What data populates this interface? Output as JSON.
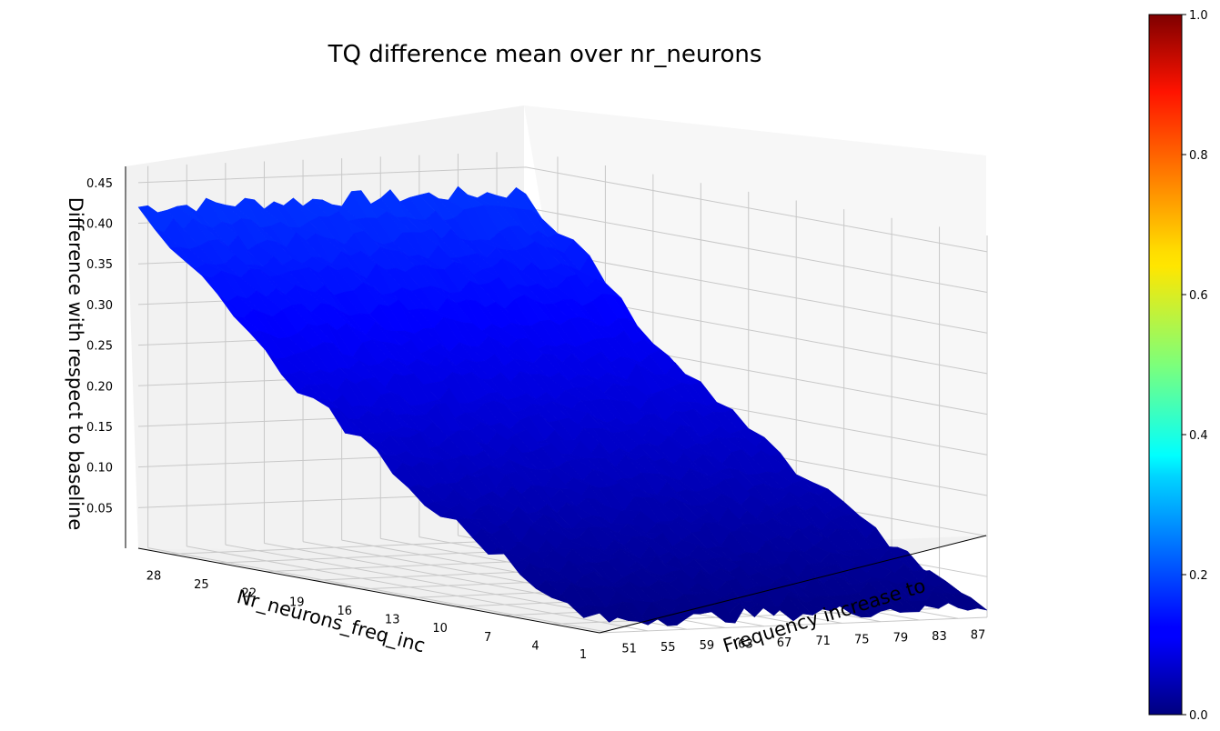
{
  "chart_data": {
    "type": "surface3d",
    "title": "TQ difference mean over nr_neurons",
    "xlabel": "Nr_neurons_freq_inc",
    "ylabel": "Frequency increase to",
    "zlabel": "Difference with respect to baseline",
    "x_ticks": [
      "28",
      "25",
      "22",
      "19",
      "16",
      "13",
      "10",
      "7",
      "4",
      "1"
    ],
    "y_ticks": [
      "51",
      "55",
      "59",
      "63",
      "67",
      "71",
      "75",
      "79",
      "83",
      "87"
    ],
    "z_ticks": [
      "0.05",
      "0.10",
      "0.15",
      "0.20",
      "0.25",
      "0.30",
      "0.35",
      "0.40",
      "0.45"
    ],
    "x_range": [
      1,
      30
    ],
    "y_range": [
      50,
      90
    ],
    "z_range": [
      0.0,
      0.47
    ],
    "surface_summary": {
      "x": [
        1,
        4,
        7,
        10,
        13,
        16,
        19,
        22,
        25,
        28,
        30
      ],
      "difference_at_all_frequencies": [
        0.015,
        0.04,
        0.07,
        0.1,
        0.14,
        0.18,
        0.22,
        0.27,
        0.33,
        0.38,
        0.42
      ]
    },
    "colormap": "jet",
    "colorbar": {
      "ticks": [
        "0.0",
        "0.2",
        "0.4",
        "0.6",
        "0.8",
        "1.0"
      ],
      "range": [
        0.0,
        1.0
      ]
    },
    "grid": true
  }
}
